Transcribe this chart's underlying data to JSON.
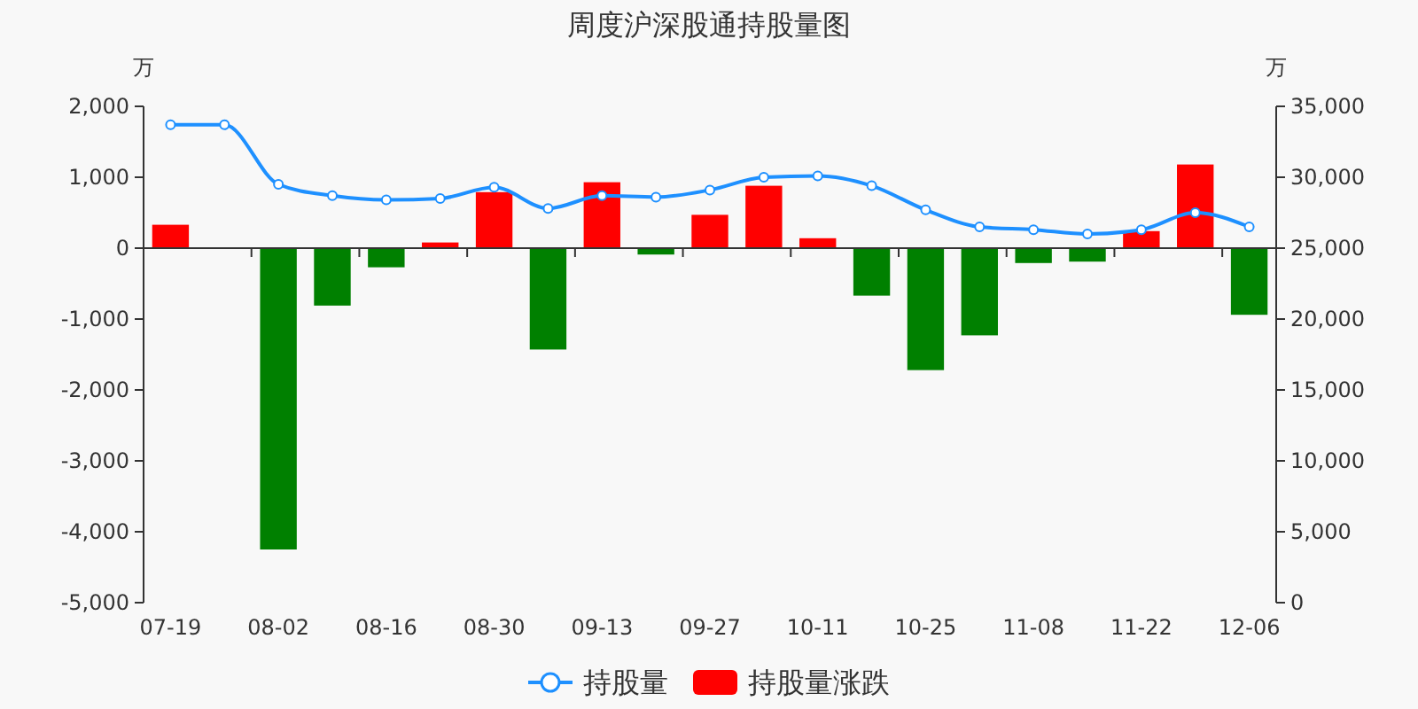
{
  "chart_data": {
    "type": "bar",
    "title": "周度沪深股通持股量图",
    "ylabel": "万",
    "y2label": "万",
    "categories": [
      "07-19",
      null,
      "08-02",
      null,
      "08-16",
      null,
      "08-30",
      null,
      "09-13",
      null,
      "09-27",
      null,
      "10-11",
      null,
      "10-25",
      null,
      "11-08",
      null,
      "11-22",
      null,
      "12-06"
    ],
    "series": [
      {
        "name": "持股量",
        "type": "line",
        "axis": "y2",
        "color": "#1e90ff",
        "values": [
          33700,
          33700,
          29500,
          28700,
          28400,
          28500,
          29300,
          27800,
          28700,
          28600,
          29100,
          30000,
          30100,
          29400,
          27700,
          26500,
          26300,
          26000,
          26300,
          27500,
          26500
        ]
      },
      {
        "name": "持股量涨跌",
        "color": "#ff0000",
        "colors": [
          "#ff0000",
          null,
          "#008000",
          "#008000",
          "#008000",
          "#ff0000",
          "#ff0000",
          "#008000",
          "#ff0000",
          "#008000",
          "#ff0000",
          "#ff0000",
          "#ff0000",
          "#008000",
          "#008000",
          "#008000",
          "#008000",
          "#008000",
          "#ff0000",
          "#ff0000",
          "#008000"
        ],
        "values": [
          330,
          null,
          -4250,
          -810,
          -270,
          80,
          790,
          -1430,
          930,
          -90,
          470,
          880,
          140,
          -670,
          -1720,
          -1230,
          -210,
          -190,
          240,
          1180,
          -940
        ]
      }
    ],
    "ylim": [
      -5000,
      2000
    ],
    "yticks": [
      {
        "value": -5000,
        "label": "-5,000"
      },
      {
        "value": -4000,
        "label": "-4,000"
      },
      {
        "value": -3000,
        "label": "-3,000"
      },
      {
        "value": -2000,
        "label": "-2,000"
      },
      {
        "value": -1000,
        "label": "-1,000"
      },
      0,
      {
        "value": 1000,
        "label": "1,000"
      },
      {
        "value": 2000,
        "label": "2,000"
      }
    ],
    "y2lim": [
      0,
      35000
    ],
    "y2ticks": [
      0,
      {
        "value": 5000,
        "label": "5,000"
      },
      {
        "value": 10000,
        "label": "10,000"
      },
      {
        "value": 15000,
        "label": "15,000"
      },
      {
        "value": 20000,
        "label": "20,000"
      },
      {
        "value": 25000,
        "label": "25,000"
      },
      {
        "value": 30000,
        "label": "30,000"
      },
      {
        "value": 35000,
        "label": "35,000"
      }
    ],
    "legend": "bottom",
    "marker": "circle"
  }
}
